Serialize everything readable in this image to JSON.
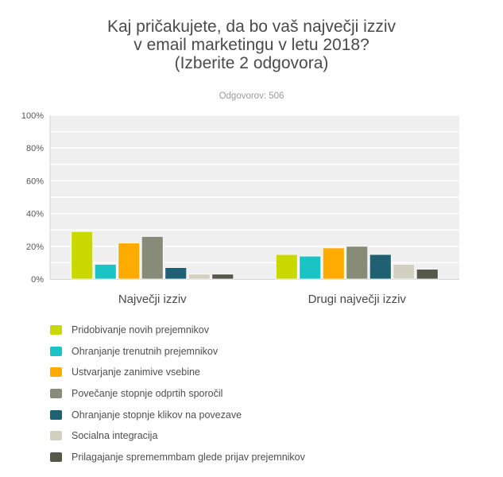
{
  "title_lines": [
    "Kaj pričakujete, da bo vaš največji izziv",
    "v email marketingu v letu 2018?",
    "(Izberite 2 odgovora)"
  ],
  "subtitle": "Odgovorov: 506",
  "chart_data": {
    "type": "bar",
    "title": "Kaj pričakujete, da bo vaš največji izziv v email marketingu v letu 2018? (Izberite 2 odgovora)",
    "subtitle": "Odgovorov: 506",
    "categories": [
      "Največji izziv",
      "Drugi največji izziv"
    ],
    "series": [
      {
        "name": "Pridobivanje novih prejemnikov",
        "color": "#c8d800",
        "values": [
          29,
          15
        ]
      },
      {
        "name": "Ohranjanje trenutnih prejemnikov",
        "color": "#1cc3c5",
        "values": [
          9,
          14
        ]
      },
      {
        "name": "Ustvarjanje zanimive vsebine",
        "color": "#ffab00",
        "values": [
          22,
          19
        ]
      },
      {
        "name": "Povečanje stopnje odprtih sporočil",
        "color": "#898b79",
        "values": [
          26,
          20
        ]
      },
      {
        "name": "Ohranjanje stopnje klikov na povezave",
        "color": "#1f6173",
        "values": [
          7,
          15
        ]
      },
      {
        "name": "Socialna integracija",
        "color": "#d2d1c1",
        "values": [
          3,
          9
        ]
      },
      {
        "name": "Prilagajanje sprememmbam glede prijav prejemnikov",
        "color": "#56584a",
        "values": [
          3,
          6
        ]
      }
    ],
    "y_ticks": [
      "0%",
      "20%",
      "40%",
      "60%",
      "80%",
      "100%"
    ],
    "ylim": [
      0,
      100
    ],
    "grid": true,
    "xlabel": "",
    "ylabel": "",
    "legend_position": "bottom"
  }
}
